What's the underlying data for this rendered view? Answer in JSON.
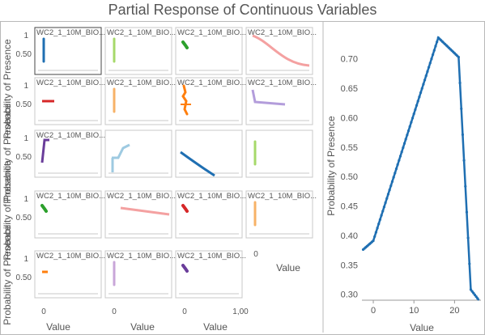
{
  "title": "Partial Response of Continuous Variables",
  "colors": {
    "grid_border": "#c8c8c8",
    "axis_text": "#555555",
    "main_line": "#1f6fb2"
  },
  "small_multiples": {
    "panel_title": "WC2_1_10M_BIO...",
    "ylabel": "Probability of Presence",
    "xlabel": "Value",
    "y_ticks": [
      "1",
      "0.50"
    ],
    "x_ticks": [
      "0",
      "0",
      "0",
      "1,00",
      "0"
    ],
    "panels": [
      {
        "row": 0,
        "col": 0,
        "color": "#1f6fb2",
        "kind": "vline",
        "titled": true,
        "selected": true
      },
      {
        "row": 0,
        "col": 1,
        "color": "#a6d96a",
        "kind": "vline",
        "titled": true
      },
      {
        "row": 0,
        "col": 2,
        "color": "#2ca02c",
        "kind": "blob",
        "titled": true
      },
      {
        "row": 0,
        "col": 3,
        "color": "#f4a1a1",
        "kind": "sigmoid_down",
        "titled": true
      },
      {
        "row": 1,
        "col": 0,
        "color": "#d62728",
        "kind": "hline",
        "titled": true
      },
      {
        "row": 1,
        "col": 1,
        "color": "#f7b267",
        "kind": "vline",
        "titled": true
      },
      {
        "row": 1,
        "col": 2,
        "color": "#ff7f0e",
        "kind": "scatter",
        "titled": true
      },
      {
        "row": 1,
        "col": 3,
        "color": "#b39ddb",
        "kind": "drop_flat",
        "titled": true
      },
      {
        "row": 2,
        "col": 0,
        "color": "#6a3d9a",
        "kind": "rise_flat",
        "titled": true
      },
      {
        "row": 2,
        "col": 1,
        "color": "#9ecae1",
        "kind": "step_up",
        "titled": false
      },
      {
        "row": 2,
        "col": 2,
        "color": "#1f6fb2",
        "kind": "decline",
        "titled": false
      },
      {
        "row": 2,
        "col": 3,
        "color": "#a6d96a",
        "kind": "vline",
        "titled": false
      },
      {
        "row": 3,
        "col": 0,
        "color": "#2ca02c",
        "kind": "blob",
        "titled": true
      },
      {
        "row": 3,
        "col": 1,
        "color": "#f4a1a1",
        "kind": "slight_down",
        "titled": true
      },
      {
        "row": 3,
        "col": 2,
        "color": "#d62728",
        "kind": "blob",
        "titled": true
      },
      {
        "row": 3,
        "col": 3,
        "color": "#f7b267",
        "kind": "vline",
        "titled": true
      },
      {
        "row": 4,
        "col": 0,
        "color": "#ff7f0e",
        "kind": "dash",
        "titled": true
      },
      {
        "row": 4,
        "col": 1,
        "color": "#c9a6d9",
        "kind": "vline",
        "titled": true
      },
      {
        "row": 4,
        "col": 2,
        "color": "#6a3d9a",
        "kind": "blob",
        "titled": true
      }
    ]
  },
  "chart_data": {
    "type": "line",
    "title": "",
    "xlabel": "Value",
    "ylabel": "Probability of Presence",
    "xlim": [
      -2.8,
      26.5
    ],
    "ylim": [
      0.29,
      0.745
    ],
    "x_ticks": [
      "0",
      "10",
      "20"
    ],
    "y_ticks": [
      "0.30",
      "0.35",
      "0.40",
      "0.45",
      "0.50",
      "0.55",
      "0.60",
      "0.65",
      "0.70"
    ],
    "series": [
      {
        "x": [
          -2.5,
          0,
          16,
          21,
          24,
          26
        ],
        "y": [
          0.376,
          0.391,
          0.736,
          0.703,
          0.308,
          0.29
        ]
      }
    ]
  }
}
